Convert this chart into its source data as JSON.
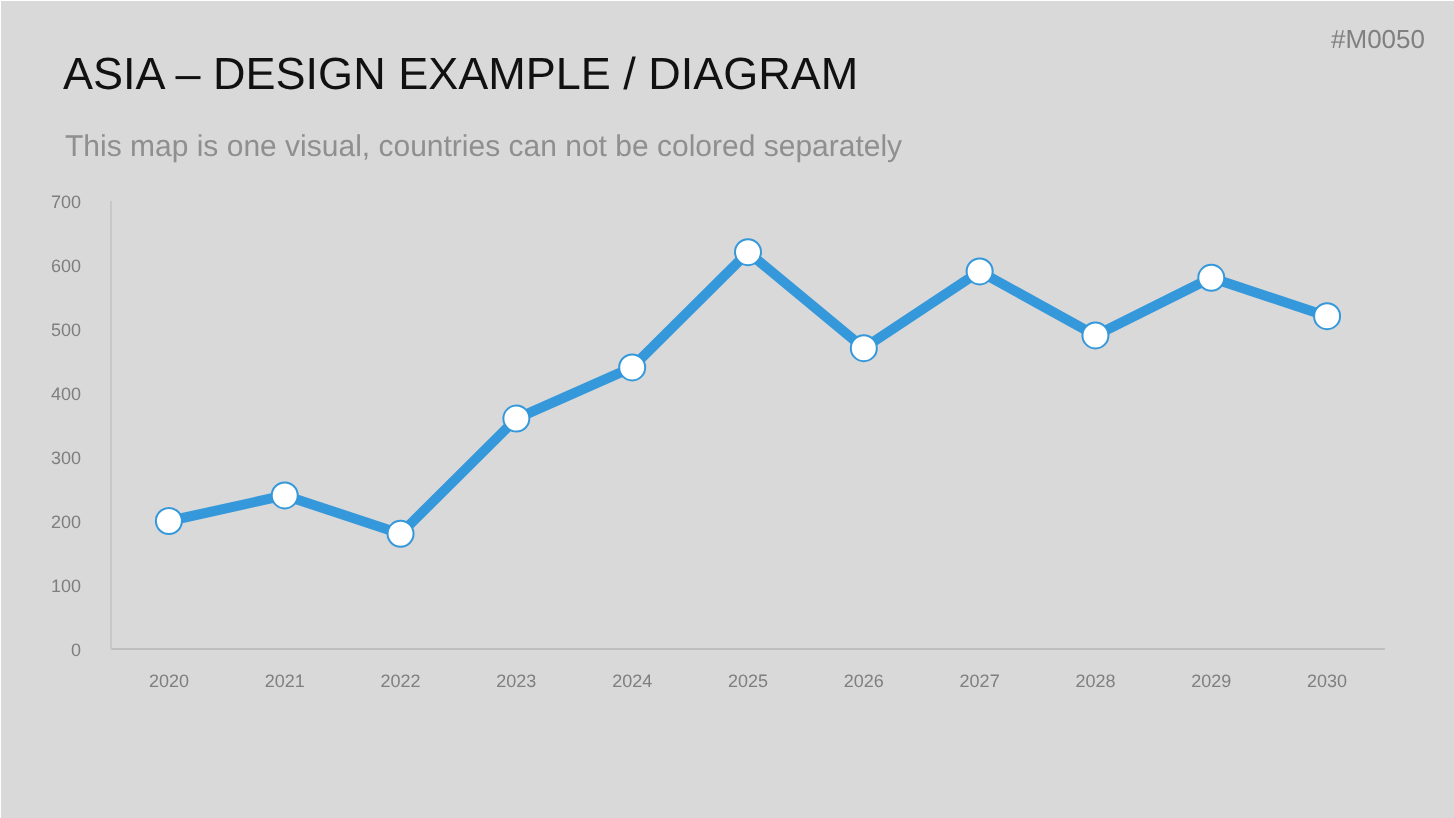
{
  "chart_data": {
    "type": "line",
    "title": "ASIA – DESIGN EXAMPLE / DIAGRAM",
    "subtitle": "This map is one visual, countries can not be colored separately",
    "annotations": [
      "#M0050"
    ],
    "categories": [
      "2020",
      "2021",
      "2022",
      "2023",
      "2024",
      "2025",
      "2026",
      "2027",
      "2028",
      "2029",
      "2030"
    ],
    "series": [
      {
        "color": "#3498db",
        "values": [
          200,
          240,
          180,
          360,
          440,
          620,
          470,
          590,
          490,
          580,
          520
        ]
      }
    ],
    "ylim": [
      0,
      700
    ],
    "yticks": [
      0,
      100,
      200,
      300,
      400,
      500,
      600,
      700
    ],
    "grid": false,
    "marker": "circle",
    "line_style": "solid"
  }
}
